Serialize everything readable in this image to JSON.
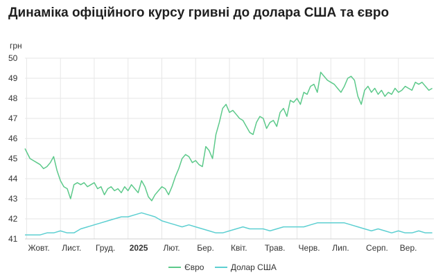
{
  "chart_data": {
    "type": "line",
    "title": "Динаміка офіційного курсу гривні до долара США та євро",
    "ylabel": "грн",
    "ylim": [
      41,
      50
    ],
    "yticks": [
      41,
      42,
      43,
      44,
      45,
      46,
      47,
      48,
      49,
      50
    ],
    "x_ticks": [
      {
        "label": "Жовт.",
        "x": 0,
        "bold": false
      },
      {
        "label": "Лист.",
        "x": 1,
        "bold": false
      },
      {
        "label": "Груд.",
        "x": 2,
        "bold": false
      },
      {
        "label": "2025",
        "x": 3,
        "bold": true
      },
      {
        "label": "Лют.",
        "x": 4,
        "bold": false
      },
      {
        "label": "Бер.",
        "x": 5,
        "bold": false
      },
      {
        "label": "Квіт.",
        "x": 6,
        "bold": false
      },
      {
        "label": "Трав.",
        "x": 7,
        "bold": false
      },
      {
        "label": "Черв.",
        "x": 8,
        "bold": false
      },
      {
        "label": "Лип.",
        "x": 9,
        "bold": false
      },
      {
        "label": "Серп.",
        "x": 10,
        "bold": false
      },
      {
        "label": "Вер.",
        "x": 11,
        "bold": false
      }
    ],
    "xlim": [
      -0.05,
      12.05
    ],
    "grid": true,
    "legend_position": "bottom",
    "series": [
      {
        "name": "Євро",
        "color": "#5cc98a",
        "x": [
          -0.05,
          0.1,
          0.2,
          0.3,
          0.4,
          0.5,
          0.6,
          0.7,
          0.8,
          0.9,
          1.0,
          1.1,
          1.2,
          1.3,
          1.4,
          1.5,
          1.6,
          1.7,
          1.8,
          1.9,
          2.0,
          2.1,
          2.2,
          2.3,
          2.4,
          2.5,
          2.6,
          2.7,
          2.8,
          2.9,
          3.0,
          3.1,
          3.2,
          3.3,
          3.4,
          3.5,
          3.6,
          3.7,
          3.8,
          3.9,
          4.0,
          4.1,
          4.2,
          4.3,
          4.4,
          4.5,
          4.6,
          4.7,
          4.8,
          4.9,
          5.0,
          5.1,
          5.2,
          5.3,
          5.4,
          5.5,
          5.6,
          5.7,
          5.8,
          5.9,
          6.0,
          6.1,
          6.2,
          6.3,
          6.4,
          6.5,
          6.6,
          6.7,
          6.8,
          6.9,
          7.0,
          7.1,
          7.2,
          7.3,
          7.4,
          7.5,
          7.6,
          7.7,
          7.8,
          7.9,
          8.0,
          8.1,
          8.2,
          8.3,
          8.4,
          8.5,
          8.6,
          8.7,
          8.8,
          8.9,
          9.0,
          9.1,
          9.2,
          9.3,
          9.4,
          9.5,
          9.6,
          9.7,
          9.8,
          9.9,
          10.0,
          10.1,
          10.2,
          10.3,
          10.4,
          10.5,
          10.6,
          10.7,
          10.8,
          10.9,
          11.0,
          11.1,
          11.2,
          11.3,
          11.4,
          11.5,
          11.6,
          11.7,
          11.8,
          11.9,
          12.0
        ],
        "values": [
          45.5,
          45.0,
          44.9,
          44.8,
          44.7,
          44.5,
          44.6,
          44.8,
          45.1,
          44.4,
          43.9,
          43.6,
          43.5,
          43.0,
          43.7,
          43.8,
          43.7,
          43.8,
          43.6,
          43.7,
          43.8,
          43.5,
          43.6,
          43.2,
          43.5,
          43.6,
          43.4,
          43.5,
          43.3,
          43.6,
          43.4,
          43.7,
          43.5,
          43.3,
          43.9,
          43.6,
          43.1,
          42.9,
          43.2,
          43.4,
          43.6,
          43.5,
          43.2,
          43.6,
          44.1,
          44.5,
          45.0,
          45.2,
          45.1,
          44.8,
          44.9,
          44.7,
          44.6,
          45.6,
          45.4,
          45.0,
          46.2,
          46.8,
          47.5,
          47.7,
          47.3,
          47.4,
          47.2,
          47.0,
          46.9,
          46.6,
          46.3,
          46.2,
          46.8,
          47.1,
          47.0,
          46.5,
          46.8,
          46.9,
          46.6,
          47.3,
          47.5,
          47.1,
          47.9,
          47.8,
          48.0,
          47.7,
          48.3,
          48.2,
          48.6,
          48.7,
          48.3,
          49.3,
          49.1,
          48.9,
          48.8,
          48.7,
          48.5,
          48.3,
          48.6,
          49.0,
          49.1,
          48.9,
          48.1,
          47.7,
          48.4,
          48.6,
          48.3,
          48.5,
          48.2,
          48.4,
          48.1,
          48.3,
          48.2,
          48.5,
          48.3,
          48.4,
          48.6,
          48.5,
          48.4,
          48.8,
          48.7,
          48.8,
          48.6,
          48.4,
          48.5
        ]
      },
      {
        "name": "Долар США",
        "color": "#5ccfd1",
        "x": [
          -0.05,
          0.2,
          0.4,
          0.6,
          0.8,
          1.0,
          1.2,
          1.4,
          1.6,
          1.8,
          2.0,
          2.2,
          2.4,
          2.6,
          2.8,
          3.0,
          3.2,
          3.4,
          3.6,
          3.8,
          4.0,
          4.2,
          4.4,
          4.6,
          4.8,
          5.0,
          5.2,
          5.4,
          5.6,
          5.8,
          6.0,
          6.2,
          6.4,
          6.6,
          6.8,
          7.0,
          7.2,
          7.4,
          7.6,
          7.8,
          8.0,
          8.2,
          8.4,
          8.6,
          8.8,
          9.0,
          9.2,
          9.4,
          9.6,
          9.8,
          10.0,
          10.2,
          10.4,
          10.6,
          10.8,
          11.0,
          11.2,
          11.4,
          11.6,
          11.8,
          12.0
        ],
        "values": [
          41.2,
          41.2,
          41.2,
          41.3,
          41.3,
          41.4,
          41.3,
          41.3,
          41.5,
          41.6,
          41.7,
          41.8,
          41.9,
          42.0,
          42.1,
          42.1,
          42.2,
          42.3,
          42.2,
          42.1,
          41.9,
          41.8,
          41.7,
          41.6,
          41.7,
          41.6,
          41.5,
          41.4,
          41.3,
          41.3,
          41.4,
          41.5,
          41.6,
          41.5,
          41.5,
          41.5,
          41.4,
          41.5,
          41.6,
          41.6,
          41.6,
          41.6,
          41.7,
          41.8,
          41.8,
          41.8,
          41.8,
          41.8,
          41.7,
          41.6,
          41.5,
          41.4,
          41.5,
          41.4,
          41.3,
          41.4,
          41.3,
          41.3,
          41.4,
          41.3,
          41.3
        ]
      }
    ]
  }
}
